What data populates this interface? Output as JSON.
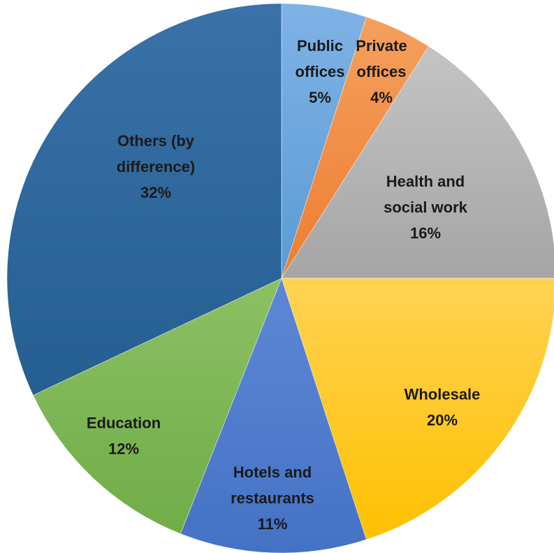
{
  "chart_data": {
    "type": "pie",
    "start_angle_deg": 0,
    "direction": "clockwise",
    "slices": [
      {
        "label_lines": [
          "Public",
          "offices"
        ],
        "percent_label": "5%",
        "value": 5,
        "color": "#5b9bd5",
        "color_light": "#7fb2e5"
      },
      {
        "label_lines": [
          "Private",
          "offices"
        ],
        "percent_label": "4%",
        "value": 4,
        "color": "#ed7d31",
        "color_light": "#f5a05e"
      },
      {
        "label_lines": [
          "Health and",
          "social work"
        ],
        "percent_label": "16%",
        "value": 16,
        "color": "#a5a5a5",
        "color_light": "#c4c4c4"
      },
      {
        "label_lines": [
          "Wholesale"
        ],
        "percent_label": "20%",
        "value": 20,
        "color": "#ffc000",
        "color_light": "#ffd354"
      },
      {
        "label_lines": [
          "Hotels and",
          "restaurants"
        ],
        "percent_label": "11%",
        "value": 11,
        "color": "#4472c4",
        "color_light": "#5e88d6"
      },
      {
        "label_lines": [
          "Education"
        ],
        "percent_label": "12%",
        "value": 12,
        "color": "#70ad47",
        "color_light": "#8cc064"
      },
      {
        "label_lines": [
          "Others (by",
          "difference)"
        ],
        "percent_label": "32%",
        "value": 32,
        "color": "#255e91",
        "color_light": "#3a72a8"
      }
    ]
  }
}
